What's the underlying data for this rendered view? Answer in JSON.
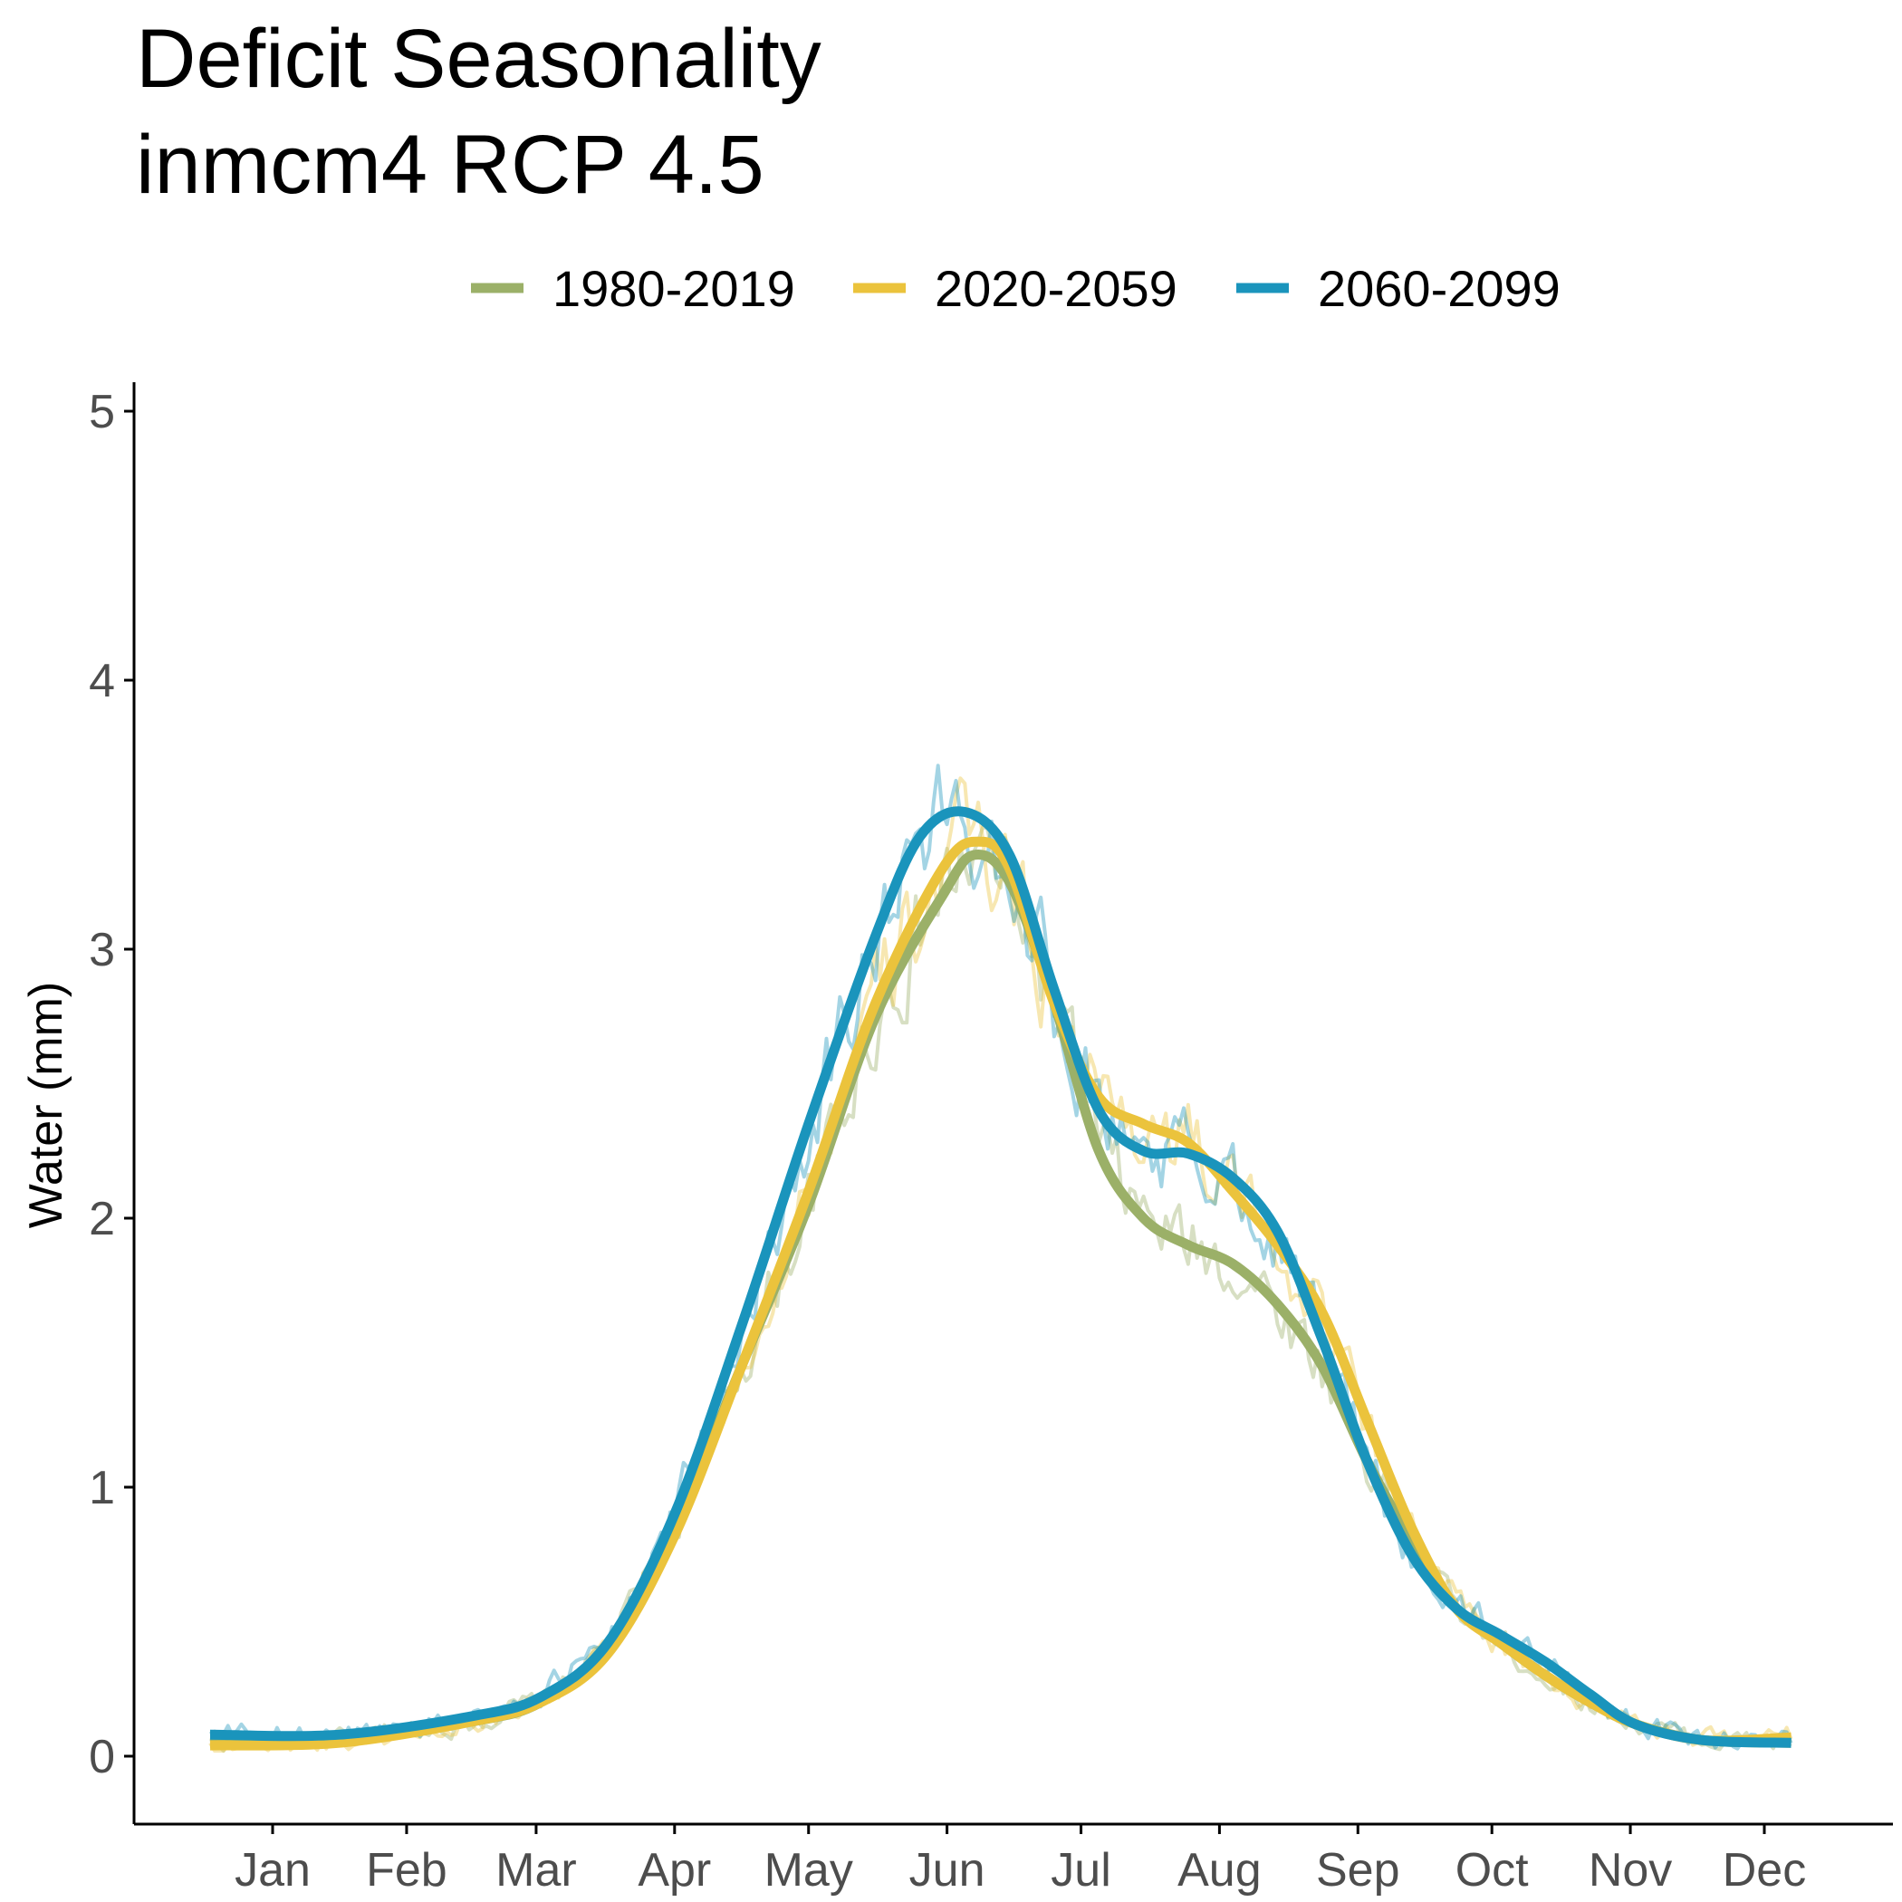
{
  "chart_data": {
    "type": "line",
    "title": [
      "Deficit Seasonality",
      "inmcm4 RCP 4.5"
    ],
    "xlabel": "",
    "ylabel": "Water (mm)",
    "x_unit": "day of year",
    "xlim": [
      1,
      365
    ],
    "ylim": [
      0,
      5
    ],
    "y_ticks": [
      0,
      1,
      2,
      3,
      4,
      5
    ],
    "x_ticks": [
      {
        "label": "Jan",
        "day": 15
      },
      {
        "label": "Feb",
        "day": 45
      },
      {
        "label": "Mar",
        "day": 74
      },
      {
        "label": "Apr",
        "day": 105
      },
      {
        "label": "May",
        "day": 135
      },
      {
        "label": "Jun",
        "day": 166
      },
      {
        "label": "Jul",
        "day": 196
      },
      {
        "label": "Aug",
        "day": 227
      },
      {
        "label": "Sep",
        "day": 258
      },
      {
        "label": "Oct",
        "day": 288
      },
      {
        "label": "Nov",
        "day": 319
      },
      {
        "label": "Dec",
        "day": 349
      }
    ],
    "grid": false,
    "legend_position": "top",
    "series": [
      {
        "name": "1980-2019",
        "color": "#9bb068",
        "smoothed": [
          [
            1,
            0.05
          ],
          [
            30,
            0.06
          ],
          [
            60,
            0.13
          ],
          [
            75,
            0.2
          ],
          [
            90,
            0.4
          ],
          [
            105,
            0.85
          ],
          [
            120,
            1.45
          ],
          [
            135,
            2.05
          ],
          [
            150,
            2.75
          ],
          [
            165,
            3.2
          ],
          [
            172,
            3.35
          ],
          [
            180,
            3.25
          ],
          [
            190,
            2.8
          ],
          [
            200,
            2.25
          ],
          [
            210,
            2.0
          ],
          [
            220,
            1.9
          ],
          [
            230,
            1.83
          ],
          [
            240,
            1.68
          ],
          [
            250,
            1.45
          ],
          [
            260,
            1.1
          ],
          [
            270,
            0.8
          ],
          [
            280,
            0.55
          ],
          [
            290,
            0.42
          ],
          [
            300,
            0.3
          ],
          [
            310,
            0.2
          ],
          [
            320,
            0.12
          ],
          [
            335,
            0.06
          ],
          [
            355,
            0.05
          ]
        ],
        "daily_peak": 3.6
      },
      {
        "name": "2020-2059",
        "color": "#ebc33c",
        "smoothed": [
          [
            1,
            0.04
          ],
          [
            30,
            0.05
          ],
          [
            60,
            0.13
          ],
          [
            75,
            0.2
          ],
          [
            90,
            0.38
          ],
          [
            105,
            0.82
          ],
          [
            120,
            1.45
          ],
          [
            135,
            2.1
          ],
          [
            150,
            2.8
          ],
          [
            165,
            3.3
          ],
          [
            173,
            3.4
          ],
          [
            180,
            3.3
          ],
          [
            190,
            2.8
          ],
          [
            200,
            2.45
          ],
          [
            210,
            2.35
          ],
          [
            220,
            2.28
          ],
          [
            230,
            2.1
          ],
          [
            240,
            1.9
          ],
          [
            250,
            1.65
          ],
          [
            260,
            1.25
          ],
          [
            270,
            0.85
          ],
          [
            280,
            0.55
          ],
          [
            290,
            0.42
          ],
          [
            300,
            0.3
          ],
          [
            310,
            0.2
          ],
          [
            320,
            0.12
          ],
          [
            335,
            0.06
          ],
          [
            355,
            0.07
          ]
        ],
        "daily_peak": 3.7
      },
      {
        "name": "2060-2099",
        "color": "#1a94bc",
        "smoothed": [
          [
            1,
            0.08
          ],
          [
            30,
            0.08
          ],
          [
            60,
            0.15
          ],
          [
            75,
            0.22
          ],
          [
            90,
            0.42
          ],
          [
            105,
            0.9
          ],
          [
            120,
            1.6
          ],
          [
            135,
            2.35
          ],
          [
            150,
            3.05
          ],
          [
            160,
            3.42
          ],
          [
            170,
            3.51
          ],
          [
            180,
            3.35
          ],
          [
            190,
            2.85
          ],
          [
            200,
            2.4
          ],
          [
            210,
            2.25
          ],
          [
            220,
            2.24
          ],
          [
            230,
            2.15
          ],
          [
            240,
            1.95
          ],
          [
            250,
            1.55
          ],
          [
            260,
            1.1
          ],
          [
            270,
            0.75
          ],
          [
            280,
            0.55
          ],
          [
            290,
            0.45
          ],
          [
            300,
            0.35
          ],
          [
            310,
            0.23
          ],
          [
            320,
            0.12
          ],
          [
            335,
            0.06
          ],
          [
            355,
            0.05
          ]
        ],
        "daily_peak": 3.7
      }
    ]
  }
}
